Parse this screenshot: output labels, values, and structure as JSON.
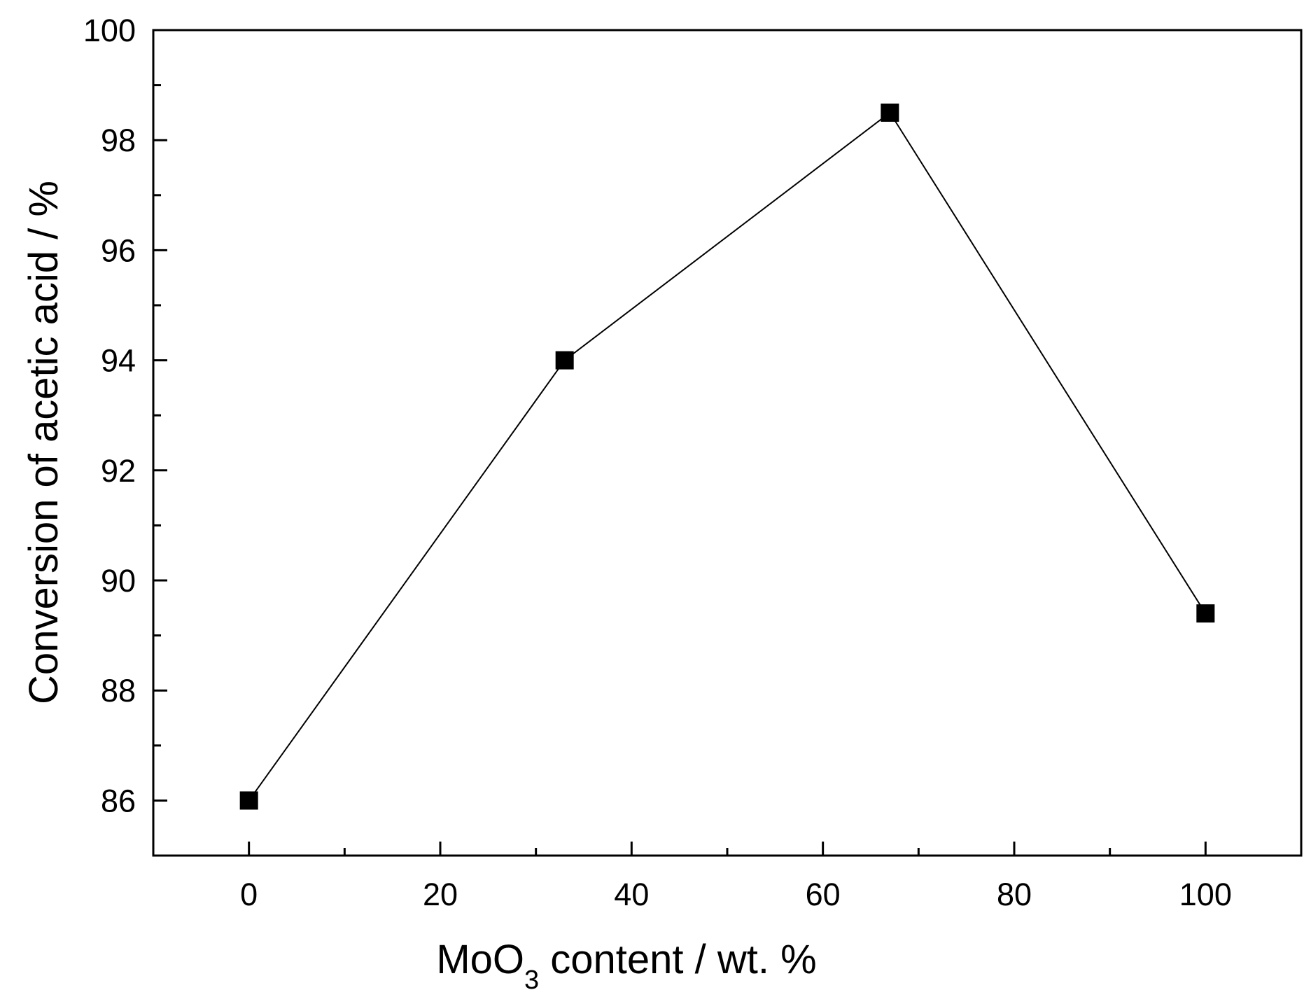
{
  "chart_data": {
    "type": "line",
    "markers": "filled-square",
    "title": "",
    "xlabel": {
      "main": "MoO",
      "subscript": "3",
      "rest": " content / wt. %"
    },
    "ylabel": "Conversion of acetic acid / %",
    "xlim": [
      -10,
      110
    ],
    "ylim": [
      85,
      100
    ],
    "xticks": [
      0,
      20,
      40,
      60,
      80,
      100
    ],
    "xticks_minor": [
      10,
      30,
      50,
      70,
      90
    ],
    "yticks": [
      86,
      88,
      90,
      92,
      94,
      96,
      98,
      100
    ],
    "yticks_minor": [
      87,
      89,
      91,
      93,
      95,
      97,
      99
    ],
    "grid": false,
    "legend": "none",
    "series": [
      {
        "x": [
          0,
          33,
          67,
          100
        ],
        "y": [
          86.0,
          94.0,
          98.5,
          89.4
        ],
        "color": "#000000"
      }
    ]
  }
}
